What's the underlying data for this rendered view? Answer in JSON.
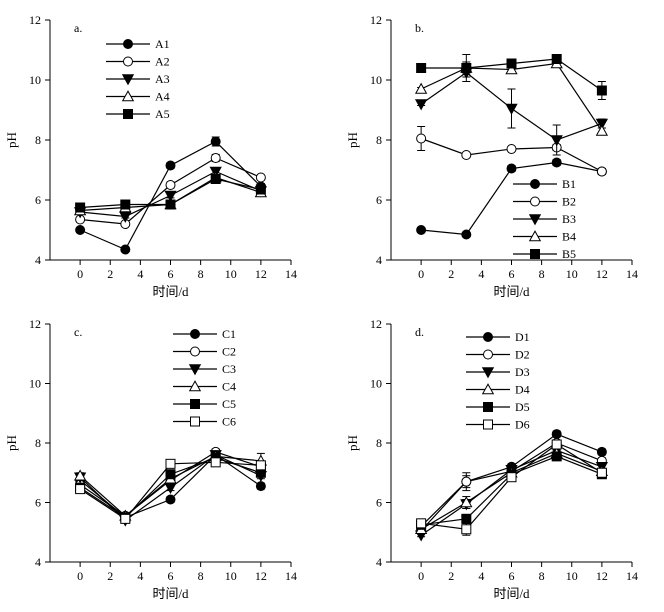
{
  "chart_data": [
    {
      "type": "line",
      "panel_label": "a.",
      "xlabel": "时间/d",
      "ylabel": "pH",
      "xlim": [
        -2,
        14
      ],
      "ylim": [
        4,
        12
      ],
      "xticks": [
        0,
        2,
        4,
        6,
        8,
        10,
        12,
        14
      ],
      "yticks": [
        4,
        6,
        8,
        10,
        12
      ],
      "legend_position": "top-left",
      "series": [
        {
          "name": "A1",
          "marker": "circle",
          "filled": true,
          "x": [
            0,
            3,
            6,
            9,
            12
          ],
          "y": [
            5.0,
            4.35,
            7.15,
            7.95,
            6.45
          ],
          "err": [
            0.05,
            0.05,
            0.1,
            0.15,
            0.1
          ]
        },
        {
          "name": "A2",
          "marker": "circle",
          "filled": false,
          "x": [
            0,
            3,
            6,
            9,
            12
          ],
          "y": [
            5.35,
            5.2,
            6.5,
            7.4,
            6.75
          ],
          "err": [
            0.05,
            0.05,
            0.1,
            0.12,
            0.08
          ]
        },
        {
          "name": "A3",
          "marker": "triangle-down",
          "filled": true,
          "x": [
            0,
            3,
            6,
            9,
            12
          ],
          "y": [
            5.6,
            5.45,
            6.15,
            6.95,
            6.3
          ],
          "err": [
            0.05,
            0.05,
            0.08,
            0.12,
            0.08
          ]
        },
        {
          "name": "A4",
          "marker": "triangle-up",
          "filled": false,
          "x": [
            0,
            3,
            6,
            9,
            12
          ],
          "y": [
            5.65,
            5.75,
            5.85,
            6.75,
            6.25
          ],
          "err": [
            0.05,
            0.05,
            0.05,
            0.1,
            0.05
          ]
        },
        {
          "name": "A5",
          "marker": "square",
          "filled": true,
          "x": [
            0,
            3,
            6,
            9,
            12
          ],
          "y": [
            5.75,
            5.85,
            5.85,
            6.7,
            6.35
          ],
          "err": [
            0.05,
            0.05,
            0.05,
            0.1,
            0.05
          ]
        }
      ]
    },
    {
      "type": "line",
      "panel_label": "b.",
      "xlabel": "时间/d",
      "ylabel": "pH",
      "xlim": [
        -2,
        14
      ],
      "ylim": [
        4,
        12
      ],
      "xticks": [
        0,
        2,
        4,
        6,
        8,
        10,
        12,
        14
      ],
      "yticks": [
        4,
        6,
        8,
        10,
        12
      ],
      "legend_position": "bottom-right",
      "series": [
        {
          "name": "B1",
          "marker": "circle",
          "filled": true,
          "x": [
            0,
            3,
            6,
            9,
            12
          ],
          "y": [
            5.0,
            4.85,
            7.05,
            7.25,
            6.95
          ],
          "err": [
            0.08,
            0.05,
            0.1,
            0.1,
            0.1
          ]
        },
        {
          "name": "B2",
          "marker": "circle",
          "filled": false,
          "x": [
            0,
            3,
            6,
            9,
            12
          ],
          "y": [
            8.05,
            7.5,
            7.7,
            7.75,
            6.95
          ],
          "err": [
            0.4,
            0.05,
            0.08,
            0.1,
            0.1
          ]
        },
        {
          "name": "B3",
          "marker": "triangle-down",
          "filled": true,
          "x": [
            0,
            3,
            6,
            9,
            12
          ],
          "y": [
            9.2,
            10.25,
            9.05,
            8.0,
            8.55
          ],
          "err": [
            0.05,
            0.15,
            0.65,
            0.5,
            0.15
          ]
        },
        {
          "name": "B4",
          "marker": "triangle-up",
          "filled": false,
          "x": [
            0,
            3,
            6,
            9,
            12
          ],
          "y": [
            9.7,
            10.4,
            10.35,
            10.55,
            8.3
          ],
          "err": [
            0.05,
            0.2,
            0.1,
            0.1,
            0.1
          ]
        },
        {
          "name": "B5",
          "marker": "square",
          "filled": true,
          "x": [
            0,
            3,
            6,
            9,
            12
          ],
          "y": [
            10.4,
            10.4,
            10.55,
            10.7,
            9.65
          ],
          "err": [
            0.05,
            0.45,
            0.08,
            0.08,
            0.3
          ]
        }
      ]
    },
    {
      "type": "line",
      "panel_label": "c.",
      "xlabel": "时间/d",
      "ylabel": "pH",
      "xlim": [
        -2,
        14
      ],
      "ylim": [
        4,
        12
      ],
      "xticks": [
        0,
        2,
        4,
        6,
        8,
        10,
        12,
        14
      ],
      "yticks": [
        4,
        6,
        8,
        10,
        12
      ],
      "legend_position": "top-right",
      "series": [
        {
          "name": "C1",
          "marker": "circle",
          "filled": true,
          "x": [
            0,
            3,
            6,
            9,
            12
          ],
          "y": [
            6.75,
            5.5,
            6.1,
            7.6,
            6.55
          ],
          "err": [
            0.1,
            0.05,
            0.1,
            0.1,
            0.1
          ]
        },
        {
          "name": "C2",
          "marker": "circle",
          "filled": false,
          "x": [
            0,
            3,
            6,
            9,
            12
          ],
          "y": [
            6.6,
            5.55,
            6.75,
            7.7,
            7.2
          ],
          "err": [
            0.1,
            0.05,
            0.1,
            0.1,
            0.1
          ]
        },
        {
          "name": "C3",
          "marker": "triangle-down",
          "filled": true,
          "x": [
            0,
            3,
            6,
            9,
            12
          ],
          "y": [
            6.85,
            5.4,
            6.5,
            7.6,
            6.9
          ],
          "err": [
            0.1,
            0.05,
            0.1,
            0.1,
            0.1
          ]
        },
        {
          "name": "C4",
          "marker": "triangle-up",
          "filled": false,
          "x": [
            0,
            3,
            6,
            9,
            12
          ],
          "y": [
            6.9,
            5.55,
            6.8,
            7.55,
            7.4
          ],
          "err": [
            0.1,
            0.05,
            0.1,
            0.1,
            0.25
          ]
        },
        {
          "name": "C5",
          "marker": "square",
          "filled": true,
          "x": [
            0,
            3,
            6,
            9,
            12
          ],
          "y": [
            6.5,
            5.5,
            6.95,
            7.5,
            7.0
          ],
          "err": [
            0.1,
            0.05,
            0.1,
            0.1,
            0.1
          ]
        },
        {
          "name": "C6",
          "marker": "square",
          "filled": false,
          "x": [
            0,
            3,
            6,
            9,
            12
          ],
          "y": [
            6.45,
            5.45,
            7.3,
            7.35,
            7.25
          ],
          "err": [
            0.1,
            0.05,
            0.1,
            0.1,
            0.1
          ]
        }
      ]
    },
    {
      "type": "line",
      "panel_label": "d.",
      "xlabel": "时间/d",
      "ylabel": "pH",
      "xlim": [
        -2,
        14
      ],
      "ylim": [
        4,
        12
      ],
      "xticks": [
        0,
        2,
        4,
        6,
        8,
        10,
        12,
        14
      ],
      "yticks": [
        4,
        6,
        8,
        10,
        12
      ],
      "legend_position": "top-center",
      "series": [
        {
          "name": "D1",
          "marker": "circle",
          "filled": true,
          "x": [
            0,
            3,
            6,
            9,
            12
          ],
          "y": [
            5.05,
            6.7,
            7.2,
            8.3,
            7.7
          ],
          "err": [
            0.05,
            0.3,
            0.1,
            0.1,
            0.1
          ]
        },
        {
          "name": "D2",
          "marker": "circle",
          "filled": false,
          "x": [
            0,
            3,
            6,
            9,
            12
          ],
          "y": [
            5.2,
            6.7,
            7.05,
            8.0,
            7.4
          ],
          "err": [
            0.05,
            0.2,
            0.1,
            0.1,
            0.1
          ]
        },
        {
          "name": "D3",
          "marker": "triangle-down",
          "filled": true,
          "x": [
            0,
            3,
            6,
            9,
            12
          ],
          "y": [
            4.9,
            5.95,
            7.1,
            7.75,
            7.2
          ],
          "err": [
            0.05,
            0.15,
            0.1,
            0.1,
            0.1
          ]
        },
        {
          "name": "D4",
          "marker": "triangle-up",
          "filled": false,
          "x": [
            0,
            3,
            6,
            9,
            12
          ],
          "y": [
            5.1,
            6.0,
            7.0,
            7.65,
            7.05
          ],
          "err": [
            0.05,
            0.2,
            0.1,
            0.1,
            0.1
          ]
        },
        {
          "name": "D5",
          "marker": "square",
          "filled": true,
          "x": [
            0,
            3,
            6,
            9,
            12
          ],
          "y": [
            5.25,
            5.45,
            6.95,
            7.55,
            6.95
          ],
          "err": [
            0.05,
            0.15,
            0.1,
            0.1,
            0.1
          ]
        },
        {
          "name": "D6",
          "marker": "square",
          "filled": false,
          "x": [
            0,
            3,
            6,
            9,
            12
          ],
          "y": [
            5.3,
            5.1,
            6.85,
            7.95,
            7.0
          ],
          "err": [
            0.05,
            0.2,
            0.1,
            0.1,
            0.1
          ]
        }
      ]
    }
  ]
}
